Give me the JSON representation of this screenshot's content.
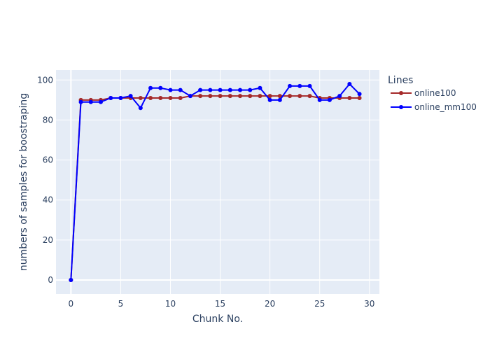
{
  "chart_data": {
    "type": "line",
    "xlabel": "Chunk No.",
    "ylabel": "numbers of samples for boostraping",
    "xlim": [
      -1.5,
      31
    ],
    "ylim": [
      -7,
      105
    ],
    "x_ticks": [
      0,
      5,
      10,
      15,
      20,
      25,
      30
    ],
    "y_ticks": [
      0,
      20,
      40,
      60,
      80,
      100
    ],
    "grid": true,
    "legend": {
      "title": "Lines",
      "placement": "right"
    },
    "background_color": "#e5ecf6",
    "x": [
      0,
      1,
      2,
      3,
      4,
      5,
      6,
      7,
      8,
      9,
      10,
      11,
      12,
      13,
      14,
      15,
      16,
      17,
      18,
      19,
      20,
      21,
      22,
      23,
      24,
      25,
      26,
      27,
      28,
      29
    ],
    "series": [
      {
        "name": "online100",
        "color": "#a52a2a",
        "values": [
          0,
          90,
          90,
          90,
          91,
          91,
          91,
          91,
          91,
          91,
          91,
          91,
          92,
          92,
          92,
          92,
          92,
          92,
          92,
          92,
          92,
          92,
          92,
          92,
          92,
          91,
          91,
          91,
          91,
          91
        ]
      },
      {
        "name": "online_mm100",
        "color": "#0000ff",
        "values": [
          0,
          89,
          89,
          89,
          91,
          91,
          92,
          86,
          96,
          96,
          95,
          95,
          92,
          95,
          95,
          95,
          95,
          95,
          95,
          96,
          90,
          90,
          97,
          97,
          97,
          90,
          90,
          92,
          98,
          93
        ]
      }
    ]
  }
}
